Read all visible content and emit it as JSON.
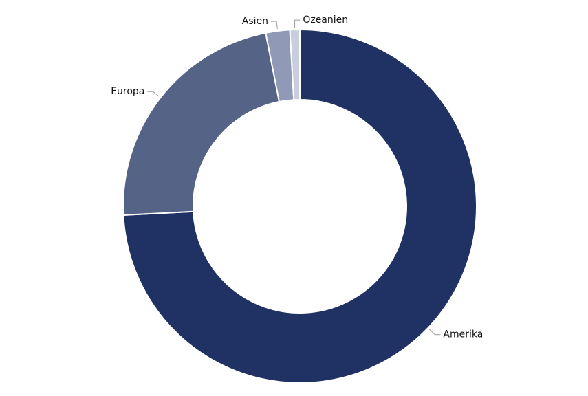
{
  "chart_data": {
    "type": "donut",
    "categories": [
      "Amerika",
      "Europa",
      "Asien",
      "Ozeanien"
    ],
    "values": [
      74.2,
      22.7,
      2.2,
      0.9
    ],
    "colors": [
      "#203163",
      "#556387",
      "#9099b5",
      "#c9cede"
    ]
  }
}
